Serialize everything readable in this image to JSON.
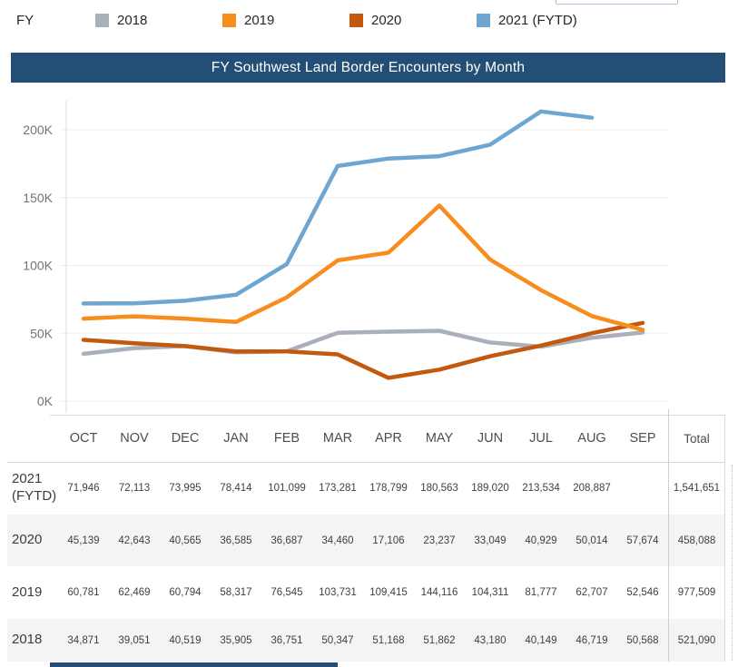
{
  "legend": {
    "label": "FY",
    "items": [
      {
        "label": "2018",
        "color": "#A9B0BA"
      },
      {
        "label": "2019",
        "color": "#F78D1E"
      },
      {
        "label": "2020",
        "color": "#C2590F"
      },
      {
        "label": "2021 (FYTD)",
        "color": "#6EA6D2"
      }
    ]
  },
  "header": {
    "title": "FY Southwest Land Border Encounters by Month"
  },
  "colors": {
    "title_bar": "#234F77",
    "grid": "#EDEDED",
    "axis": "#D9D9D9",
    "tick_label": "#757575"
  },
  "chart_data": {
    "type": "line",
    "title": "FY Southwest Land Border Encounters by Month",
    "x": [
      "OCT",
      "NOV",
      "DEC",
      "JAN",
      "FEB",
      "MAR",
      "APR",
      "MAY",
      "JUN",
      "JUL",
      "AUG",
      "SEP"
    ],
    "xlabel": "",
    "ylabel": "",
    "ylim": [
      0,
      225000
    ],
    "grid": true,
    "legend_position": "top",
    "yticks": [
      {
        "label": "0K",
        "value": 0
      },
      {
        "label": "50K",
        "value": 50000
      },
      {
        "label": "100K",
        "value": 100000
      },
      {
        "label": "150K",
        "value": 150000
      },
      {
        "label": "200K",
        "value": 200000
      }
    ],
    "series": [
      {
        "name": "2018",
        "color": "#A9B0BA",
        "values": [
          34871,
          39051,
          40519,
          35905,
          36751,
          50347,
          51168,
          51862,
          43180,
          40149,
          46719,
          50568
        ]
      },
      {
        "name": "2019",
        "color": "#F78D1E",
        "values": [
          60781,
          62469,
          60794,
          58317,
          76545,
          103731,
          109415,
          144116,
          104311,
          81777,
          62707,
          52546
        ]
      },
      {
        "name": "2020",
        "color": "#C2590F",
        "values": [
          45139,
          42643,
          40565,
          36585,
          36687,
          34460,
          17106,
          23237,
          33049,
          40929,
          50014,
          57674
        ]
      },
      {
        "name": "2021 (FYTD)",
        "color": "#6EA6D2",
        "values": [
          71946,
          72113,
          73995,
          78414,
          101099,
          173281,
          178799,
          180563,
          189020,
          213534,
          208887,
          null
        ]
      }
    ]
  },
  "table": {
    "columns": [
      "OCT",
      "NOV",
      "DEC",
      "JAN",
      "FEB",
      "MAR",
      "APR",
      "MAY",
      "JUN",
      "JUL",
      "AUG",
      "SEP",
      "Total"
    ],
    "rows": [
      {
        "label": "2021 (FYTD)",
        "shaded": false,
        "values": [
          "71,946",
          "72,113",
          "73,995",
          "78,414",
          "101,099",
          "173,281",
          "178,799",
          "180,563",
          "189,020",
          "213,534",
          "208,887",
          ""
        ],
        "total": "1,541,651"
      },
      {
        "label": "2020",
        "shaded": true,
        "values": [
          "45,139",
          "42,643",
          "40,565",
          "36,585",
          "36,687",
          "34,460",
          "17,106",
          "23,237",
          "33,049",
          "40,929",
          "50,014",
          "57,674"
        ],
        "total": "458,088"
      },
      {
        "label": "2019",
        "shaded": false,
        "values": [
          "60,781",
          "62,469",
          "60,794",
          "58,317",
          "76,545",
          "103,731",
          "109,415",
          "144,116",
          "104,311",
          "81,777",
          "62,707",
          "52,546"
        ],
        "total": "977,509"
      },
      {
        "label": "2018",
        "shaded": true,
        "values": [
          "34,871",
          "39,051",
          "40,519",
          "35,905",
          "36,751",
          "50,347",
          "51,168",
          "51,862",
          "43,180",
          "40,149",
          "46,719",
          "50,568"
        ],
        "total": "521,090"
      }
    ]
  }
}
